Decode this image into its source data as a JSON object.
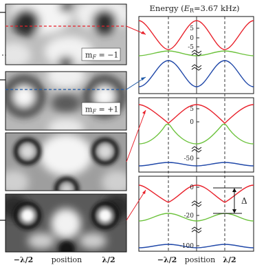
{
  "energy_label_pre": "Energy (",
  "energy_label_sym": "E",
  "energy_label_sub": "R",
  "energy_label_post": "=3.67 kHz)",
  "left_panels": [
    {
      "label_pre": "m",
      "label_sub": "F",
      "label_post": " = −1"
    },
    {
      "label_pre": "m",
      "label_sub": "F",
      "label_post": " = +1"
    },
    {
      "label_pre": "",
      "label_sub": "",
      "label_post": ""
    },
    {
      "label_pre": "",
      "label_sub": "",
      "label_post": ""
    }
  ],
  "left_xaxis": {
    "minus": "−λ/2",
    "mid": "position",
    "plus": "λ/2"
  },
  "right_xaxis": {
    "minus": "−λ/2",
    "mid": "position",
    "plus": "λ/2"
  },
  "delta_label": "Δ",
  "colors": {
    "red": "#e8202a",
    "green": "#6cc23c",
    "blue": "#1f47a8",
    "red_dash": "#e8202a",
    "blue_dash": "#1f5aa8"
  },
  "chart_data": [
    {
      "type": "line",
      "panel": "top",
      "x_ticks": [
        "−λ/2",
        "λ/2"
      ],
      "y_ticks": [
        5,
        0,
        -5
      ],
      "series": [
        {
          "color": "red",
          "x": [
            -1,
            -0.5,
            0,
            0.5,
            1
          ],
          "y": [
            9.5,
            0.5,
            9.5,
            0.5,
            9.5
          ]
        },
        {
          "color": "green",
          "x": [
            -1,
            -0.5,
            0,
            0.5,
            1
          ],
          "y": [
            -3.4,
            -2.8,
            -3.4,
            -2.8,
            -3.4
          ]
        },
        {
          "color": "blue",
          "x": [
            -1,
            -0.5,
            0,
            0.5,
            1
          ],
          "y": [
            -15,
            -6,
            -15,
            -6,
            -15
          ]
        }
      ]
    },
    {
      "type": "line",
      "panel": "middle",
      "y_ticks": [
        5,
        0,
        -50
      ],
      "series": [
        {
          "color": "red",
          "x": [
            -1,
            -0.5,
            0,
            0.5,
            1
          ],
          "y": [
            7,
            0,
            7,
            0,
            7
          ]
        },
        {
          "color": "green",
          "x": [
            -1,
            -0.5,
            0,
            0.5,
            1
          ],
          "y": [
            -6,
            0,
            -6,
            0,
            -6
          ]
        },
        {
          "color": "blue",
          "x": [
            -1,
            -0.5,
            0,
            0.5,
            1
          ],
          "y": [
            -58,
            -55,
            -58,
            -55,
            -58
          ]
        }
      ]
    },
    {
      "type": "line",
      "panel": "bottom",
      "y_ticks": [
        0,
        -20,
        -100
      ],
      "series": [
        {
          "color": "red",
          "x": [
            -1,
            -0.5,
            0,
            0.5,
            1
          ],
          "y": [
            -5,
            0.5,
            -5,
            0.5,
            -5
          ]
        },
        {
          "color": "green",
          "x": [
            -1,
            -0.5,
            0,
            0.5,
            1
          ],
          "y": [
            -23,
            -20,
            -23,
            -20,
            -23
          ]
        },
        {
          "color": "blue",
          "x": [
            -1,
            -0.5,
            0,
            0.5,
            1
          ],
          "y": [
            -100,
            -97,
            -100,
            -97,
            -100
          ]
        }
      ]
    }
  ]
}
